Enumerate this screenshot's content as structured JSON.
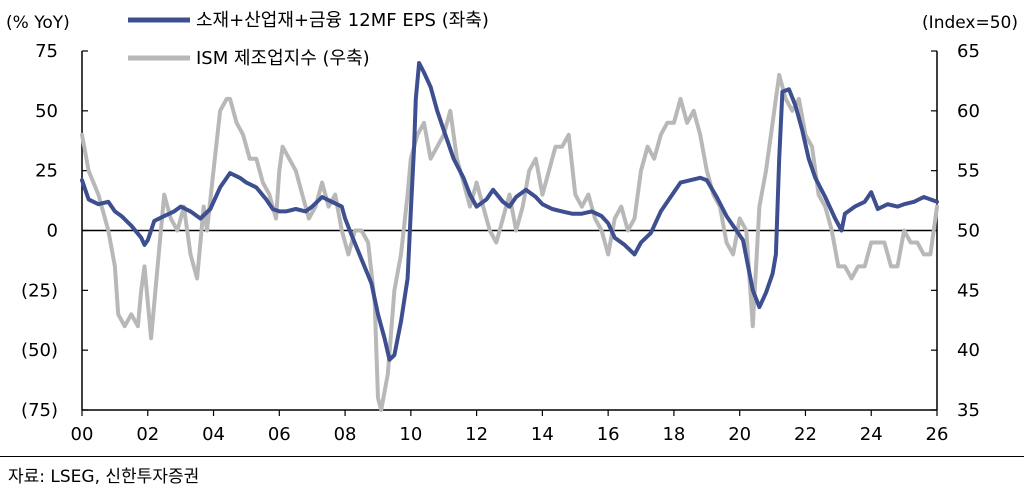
{
  "source": "자료: LSEG, 신한투자증권",
  "chart_data": {
    "type": "line",
    "left_axis_label": "(% YoY)",
    "right_axis_label": "(Index=50)",
    "x_ticks": [
      "00",
      "02",
      "04",
      "06",
      "08",
      "10",
      "12",
      "14",
      "16",
      "18",
      "20",
      "22",
      "24",
      "26"
    ],
    "y_left_ticks": [
      "75",
      "50",
      "25",
      "0",
      "(25)",
      "(50)",
      "(75)"
    ],
    "y_left_values": [
      75,
      50,
      25,
      0,
      -25,
      -50,
      -75
    ],
    "y_left_range": [
      -75,
      75
    ],
    "y_right_ticks": [
      "65",
      "60",
      "55",
      "50",
      "45",
      "40",
      "35"
    ],
    "y_right_values": [
      65,
      60,
      55,
      50,
      45,
      40,
      35
    ],
    "y_right_range": [
      35,
      65
    ],
    "x_range": [
      2000,
      2026
    ],
    "zero_line": 0,
    "series": [
      {
        "name": "소재+산업재+금융 12MF EPS (좌축)",
        "axis": "left",
        "color": "#3d4f8f",
        "points": [
          [
            2000.0,
            21
          ],
          [
            2000.2,
            13
          ],
          [
            2000.5,
            11
          ],
          [
            2000.8,
            12
          ],
          [
            2001.0,
            8
          ],
          [
            2001.2,
            6
          ],
          [
            2001.5,
            2
          ],
          [
            2001.8,
            -3
          ],
          [
            2001.9,
            -6
          ],
          [
            2002.0,
            -4
          ],
          [
            2002.2,
            4
          ],
          [
            2002.5,
            6
          ],
          [
            2002.8,
            8
          ],
          [
            2003.0,
            10
          ],
          [
            2003.3,
            8
          ],
          [
            2003.6,
            5
          ],
          [
            2003.9,
            9
          ],
          [
            2004.2,
            18
          ],
          [
            2004.5,
            24
          ],
          [
            2004.8,
            22
          ],
          [
            2005.0,
            20
          ],
          [
            2005.3,
            18
          ],
          [
            2005.6,
            13
          ],
          [
            2005.8,
            9
          ],
          [
            2006.0,
            8
          ],
          [
            2006.2,
            8
          ],
          [
            2006.5,
            9
          ],
          [
            2006.8,
            8
          ],
          [
            2007.0,
            10
          ],
          [
            2007.3,
            14
          ],
          [
            2007.6,
            12
          ],
          [
            2007.9,
            10
          ],
          [
            2008.0,
            5
          ],
          [
            2008.2,
            -2
          ],
          [
            2008.5,
            -12
          ],
          [
            2008.8,
            -22
          ],
          [
            2009.0,
            -35
          ],
          [
            2009.2,
            -45
          ],
          [
            2009.35,
            -54
          ],
          [
            2009.5,
            -52
          ],
          [
            2009.7,
            -38
          ],
          [
            2009.9,
            -20
          ],
          [
            2010.0,
            8
          ],
          [
            2010.1,
            35
          ],
          [
            2010.15,
            55
          ],
          [
            2010.25,
            70
          ],
          [
            2010.4,
            66
          ],
          [
            2010.6,
            60
          ],
          [
            2010.8,
            50
          ],
          [
            2011.0,
            42
          ],
          [
            2011.3,
            30
          ],
          [
            2011.6,
            22
          ],
          [
            2011.8,
            15
          ],
          [
            2012.0,
            10
          ],
          [
            2012.3,
            13
          ],
          [
            2012.5,
            17
          ],
          [
            2012.8,
            12
          ],
          [
            2013.0,
            10
          ],
          [
            2013.2,
            14
          ],
          [
            2013.5,
            17
          ],
          [
            2013.8,
            14
          ],
          [
            2014.0,
            11
          ],
          [
            2014.3,
            9
          ],
          [
            2014.6,
            8
          ],
          [
            2014.9,
            7
          ],
          [
            2015.2,
            7
          ],
          [
            2015.5,
            8
          ],
          [
            2015.8,
            6
          ],
          [
            2016.0,
            3
          ],
          [
            2016.2,
            -3
          ],
          [
            2016.5,
            -6
          ],
          [
            2016.8,
            -10
          ],
          [
            2017.0,
            -5
          ],
          [
            2017.3,
            -1
          ],
          [
            2017.6,
            8
          ],
          [
            2017.9,
            14
          ],
          [
            2018.2,
            20
          ],
          [
            2018.5,
            21
          ],
          [
            2018.8,
            22
          ],
          [
            2019.0,
            21
          ],
          [
            2019.3,
            14
          ],
          [
            2019.6,
            6
          ],
          [
            2019.9,
            0
          ],
          [
            2020.1,
            -4
          ],
          [
            2020.4,
            -25
          ],
          [
            2020.6,
            -32
          ],
          [
            2020.8,
            -26
          ],
          [
            2021.0,
            -18
          ],
          [
            2021.1,
            -10
          ],
          [
            2021.2,
            30
          ],
          [
            2021.3,
            58
          ],
          [
            2021.5,
            59
          ],
          [
            2021.7,
            52
          ],
          [
            2021.9,
            42
          ],
          [
            2022.1,
            30
          ],
          [
            2022.3,
            22
          ],
          [
            2022.6,
            14
          ],
          [
            2022.9,
            5
          ],
          [
            2023.1,
            0
          ],
          [
            2023.2,
            7
          ],
          [
            2023.5,
            10
          ],
          [
            2023.8,
            12
          ],
          [
            2024.0,
            16
          ],
          [
            2024.2,
            9
          ],
          [
            2024.5,
            11
          ],
          [
            2024.8,
            10
          ],
          [
            2025.0,
            11
          ],
          [
            2025.3,
            12
          ],
          [
            2025.6,
            14
          ],
          [
            2026.0,
            12
          ]
        ]
      },
      {
        "name": "ISM 제조업지수 (우축)",
        "axis": "right",
        "color": "#b8b8b8",
        "points": [
          [
            2000.0,
            58
          ],
          [
            2000.2,
            55
          ],
          [
            2000.5,
            53
          ],
          [
            2000.8,
            50
          ],
          [
            2001.0,
            47
          ],
          [
            2001.1,
            43
          ],
          [
            2001.3,
            42
          ],
          [
            2001.5,
            43
          ],
          [
            2001.7,
            42
          ],
          [
            2001.8,
            45
          ],
          [
            2001.9,
            47
          ],
          [
            2002.0,
            44
          ],
          [
            2002.1,
            41
          ],
          [
            2002.3,
            47
          ],
          [
            2002.5,
            53
          ],
          [
            2002.7,
            51
          ],
          [
            2002.9,
            50
          ],
          [
            2003.1,
            52
          ],
          [
            2003.3,
            48
          ],
          [
            2003.5,
            46
          ],
          [
            2003.7,
            52
          ],
          [
            2003.8,
            50
          ],
          [
            2004.0,
            55
          ],
          [
            2004.2,
            60
          ],
          [
            2004.4,
            61
          ],
          [
            2004.5,
            61
          ],
          [
            2004.7,
            59
          ],
          [
            2004.9,
            58
          ],
          [
            2005.1,
            56
          ],
          [
            2005.3,
            56
          ],
          [
            2005.5,
            54
          ],
          [
            2005.7,
            53
          ],
          [
            2005.9,
            51
          ],
          [
            2006.0,
            55
          ],
          [
            2006.1,
            57
          ],
          [
            2006.3,
            56
          ],
          [
            2006.5,
            55
          ],
          [
            2006.7,
            53
          ],
          [
            2006.9,
            51
          ],
          [
            2007.1,
            52
          ],
          [
            2007.3,
            54
          ],
          [
            2007.5,
            52
          ],
          [
            2007.7,
            53
          ],
          [
            2007.9,
            50
          ],
          [
            2008.1,
            48
          ],
          [
            2008.3,
            50
          ],
          [
            2008.5,
            50
          ],
          [
            2008.7,
            49
          ],
          [
            2008.9,
            44
          ],
          [
            2009.0,
            36
          ],
          [
            2009.1,
            35
          ],
          [
            2009.3,
            38
          ],
          [
            2009.5,
            45
          ],
          [
            2009.7,
            48
          ],
          [
            2009.9,
            53
          ],
          [
            2010.0,
            56
          ],
          [
            2010.2,
            58
          ],
          [
            2010.4,
            59
          ],
          [
            2010.6,
            56
          ],
          [
            2010.8,
            57
          ],
          [
            2011.0,
            58
          ],
          [
            2011.2,
            60
          ],
          [
            2011.4,
            56
          ],
          [
            2011.6,
            54
          ],
          [
            2011.8,
            52
          ],
          [
            2012.0,
            54
          ],
          [
            2012.2,
            52
          ],
          [
            2012.4,
            50
          ],
          [
            2012.6,
            49
          ],
          [
            2012.8,
            51
          ],
          [
            2013.0,
            53
          ],
          [
            2013.2,
            50
          ],
          [
            2013.4,
            52
          ],
          [
            2013.6,
            55
          ],
          [
            2013.8,
            56
          ],
          [
            2014.0,
            53
          ],
          [
            2014.2,
            55
          ],
          [
            2014.4,
            57
          ],
          [
            2014.6,
            57
          ],
          [
            2014.8,
            58
          ],
          [
            2015.0,
            53
          ],
          [
            2015.2,
            52
          ],
          [
            2015.4,
            53
          ],
          [
            2015.6,
            51
          ],
          [
            2015.8,
            50
          ],
          [
            2016.0,
            48
          ],
          [
            2016.2,
            51
          ],
          [
            2016.4,
            52
          ],
          [
            2016.6,
            50
          ],
          [
            2016.8,
            51
          ],
          [
            2017.0,
            55
          ],
          [
            2017.2,
            57
          ],
          [
            2017.4,
            56
          ],
          [
            2017.6,
            58
          ],
          [
            2017.8,
            59
          ],
          [
            2018.0,
            59
          ],
          [
            2018.2,
            61
          ],
          [
            2018.4,
            59
          ],
          [
            2018.6,
            60
          ],
          [
            2018.8,
            58
          ],
          [
            2019.0,
            55
          ],
          [
            2019.2,
            53
          ],
          [
            2019.4,
            52
          ],
          [
            2019.6,
            49
          ],
          [
            2019.8,
            48
          ],
          [
            2020.0,
            51
          ],
          [
            2020.2,
            50
          ],
          [
            2020.4,
            42
          ],
          [
            2020.6,
            52
          ],
          [
            2020.8,
            55
          ],
          [
            2021.0,
            59
          ],
          [
            2021.2,
            63
          ],
          [
            2021.4,
            61
          ],
          [
            2021.6,
            60
          ],
          [
            2021.8,
            61
          ],
          [
            2022.0,
            58
          ],
          [
            2022.2,
            57
          ],
          [
            2022.4,
            53
          ],
          [
            2022.6,
            52
          ],
          [
            2022.8,
            50
          ],
          [
            2023.0,
            47
          ],
          [
            2023.2,
            47
          ],
          [
            2023.4,
            46
          ],
          [
            2023.6,
            47
          ],
          [
            2023.8,
            47
          ],
          [
            2024.0,
            49
          ],
          [
            2024.2,
            49
          ],
          [
            2024.4,
            49
          ],
          [
            2024.6,
            47
          ],
          [
            2024.8,
            47
          ],
          [
            2025.0,
            50
          ],
          [
            2025.2,
            49
          ],
          [
            2025.4,
            49
          ],
          [
            2025.6,
            48
          ],
          [
            2025.8,
            48
          ],
          [
            2026.0,
            52
          ]
        ]
      }
    ],
    "legend": "top-left"
  }
}
